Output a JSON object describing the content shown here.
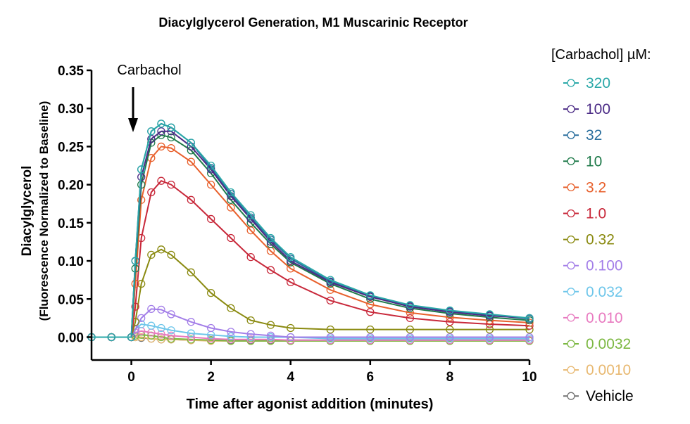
{
  "chart_data": {
    "type": "line",
    "title": "Diacylglycerol Generation,  M1 Muscarinic Receptor",
    "xlabel": "Time after agonist addition (minutes)",
    "ylabel": "Diacylglycerol",
    "ylabel_sub": "(Fluorescence Normalized to Baseline)",
    "xlim": [
      -1,
      10
    ],
    "ylim": [
      -0.03,
      0.35
    ],
    "xticks": [
      0,
      2,
      4,
      6,
      8,
      10
    ],
    "xtick_labels": [
      "0",
      "2",
      "4",
      "6",
      "8",
      "10"
    ],
    "yticks": [
      0,
      0.05,
      0.1,
      0.15,
      0.2,
      0.25,
      0.3,
      0.35
    ],
    "ytick_labels": [
      "0.00",
      "0.05",
      "0.10",
      "0.15",
      "0.20",
      "0.25",
      "0.30",
      "0.35"
    ],
    "grid": false,
    "annotation": {
      "text": "Carbachol",
      "x": 0
    },
    "legend": {
      "title": "[Carbachol] µM:",
      "placement": "right"
    },
    "x": [
      -1,
      -0.5,
      0,
      0.1,
      0.25,
      0.5,
      0.75,
      1,
      1.5,
      2,
      2.5,
      3,
      3.5,
      4,
      5,
      6,
      7,
      8,
      9,
      10
    ],
    "series": [
      {
        "name": "320",
        "color": "#2aa8a8",
        "values": [
          0,
          0,
          0,
          0.1,
          0.22,
          0.27,
          0.28,
          0.275,
          0.255,
          0.225,
          0.19,
          0.16,
          0.13,
          0.105,
          0.075,
          0.055,
          0.042,
          0.035,
          0.03,
          0.025
        ]
      },
      {
        "name": "100",
        "color": "#4b2b86",
        "values": [
          0,
          0,
          0,
          0.1,
          0.21,
          0.26,
          0.27,
          0.27,
          0.25,
          0.22,
          0.185,
          0.155,
          0.125,
          0.1,
          0.072,
          0.053,
          0.04,
          0.033,
          0.028,
          0.025
        ]
      },
      {
        "name": "32",
        "color": "#2a6f9e",
        "values": [
          0,
          0,
          0,
          0.1,
          0.22,
          0.27,
          0.28,
          0.275,
          0.255,
          0.222,
          0.188,
          0.157,
          0.128,
          0.103,
          0.073,
          0.054,
          0.041,
          0.034,
          0.029,
          0.024
        ]
      },
      {
        "name": "10",
        "color": "#1f7a4a",
        "values": [
          0,
          0,
          0,
          0.09,
          0.2,
          0.255,
          0.265,
          0.262,
          0.245,
          0.215,
          0.18,
          0.15,
          0.122,
          0.098,
          0.07,
          0.05,
          0.038,
          0.031,
          0.026,
          0.022
        ]
      },
      {
        "name": "3.2",
        "color": "#e8602c",
        "values": [
          0,
          0,
          0,
          0.07,
          0.18,
          0.235,
          0.25,
          0.248,
          0.23,
          0.2,
          0.17,
          0.14,
          0.113,
          0.09,
          0.062,
          0.043,
          0.032,
          0.026,
          0.022,
          0.019
        ]
      },
      {
        "name": "1.0",
        "color": "#c8283a",
        "values": [
          0,
          0,
          0,
          0.04,
          0.13,
          0.19,
          0.205,
          0.2,
          0.18,
          0.155,
          0.13,
          0.105,
          0.088,
          0.072,
          0.048,
          0.033,
          0.025,
          0.02,
          0.017,
          0.015
        ]
      },
      {
        "name": "0.32",
        "color": "#8a8a10",
        "values": [
          0,
          0,
          0,
          0.02,
          0.07,
          0.108,
          0.115,
          0.108,
          0.085,
          0.058,
          0.038,
          0.022,
          0.016,
          0.012,
          0.01,
          0.01,
          0.01,
          0.01,
          0.01,
          0.01
        ]
      },
      {
        "name": "0.100",
        "color": "#a37ee8",
        "values": [
          0,
          0,
          0,
          0.01,
          0.025,
          0.037,
          0.036,
          0.03,
          0.02,
          0.012,
          0.007,
          0.004,
          0.002,
          0,
          0,
          0,
          0,
          0,
          0,
          0
        ]
      },
      {
        "name": "0.032",
        "color": "#6ec6ea",
        "values": [
          0,
          0,
          0,
          0.01,
          0.017,
          0.015,
          0.012,
          0.009,
          0.005,
          0.003,
          0.001,
          0,
          0,
          0,
          -0.002,
          -0.002,
          -0.002,
          -0.002,
          -0.002,
          -0.002
        ]
      },
      {
        "name": "0.010",
        "color": "#e87ac0",
        "values": [
          0,
          0,
          0,
          0.006,
          0.008,
          0.006,
          0.004,
          0.002,
          0,
          -0.002,
          -0.003,
          -0.003,
          -0.003,
          -0.004,
          -0.004,
          -0.004,
          -0.004,
          -0.004,
          -0.004,
          -0.004
        ]
      },
      {
        "name": "0.0032",
        "color": "#7cb842",
        "values": [
          0,
          0,
          0,
          0.002,
          0.003,
          0.002,
          0,
          -0.002,
          -0.003,
          -0.004,
          -0.005,
          -0.005,
          -0.005,
          -0.005,
          -0.005,
          -0.005,
          -0.005,
          -0.005,
          -0.005,
          -0.005
        ]
      },
      {
        "name": "0.0010",
        "color": "#e8b870",
        "values": [
          0,
          0,
          0,
          0,
          0,
          -0.002,
          -0.003,
          -0.003,
          -0.004,
          -0.005,
          -0.005,
          -0.005,
          -0.005,
          -0.005,
          -0.005,
          -0.005,
          -0.005,
          -0.005,
          -0.005,
          -0.005
        ]
      },
      {
        "name": "Vehicle",
        "color": "#707070",
        "values": [
          0,
          0,
          0,
          0,
          -0.001,
          -0.002,
          -0.003,
          -0.003,
          -0.004,
          -0.004,
          -0.004,
          -0.004,
          -0.004,
          -0.004,
          -0.004,
          -0.004,
          -0.004,
          -0.004,
          -0.004,
          -0.004
        ]
      }
    ]
  }
}
